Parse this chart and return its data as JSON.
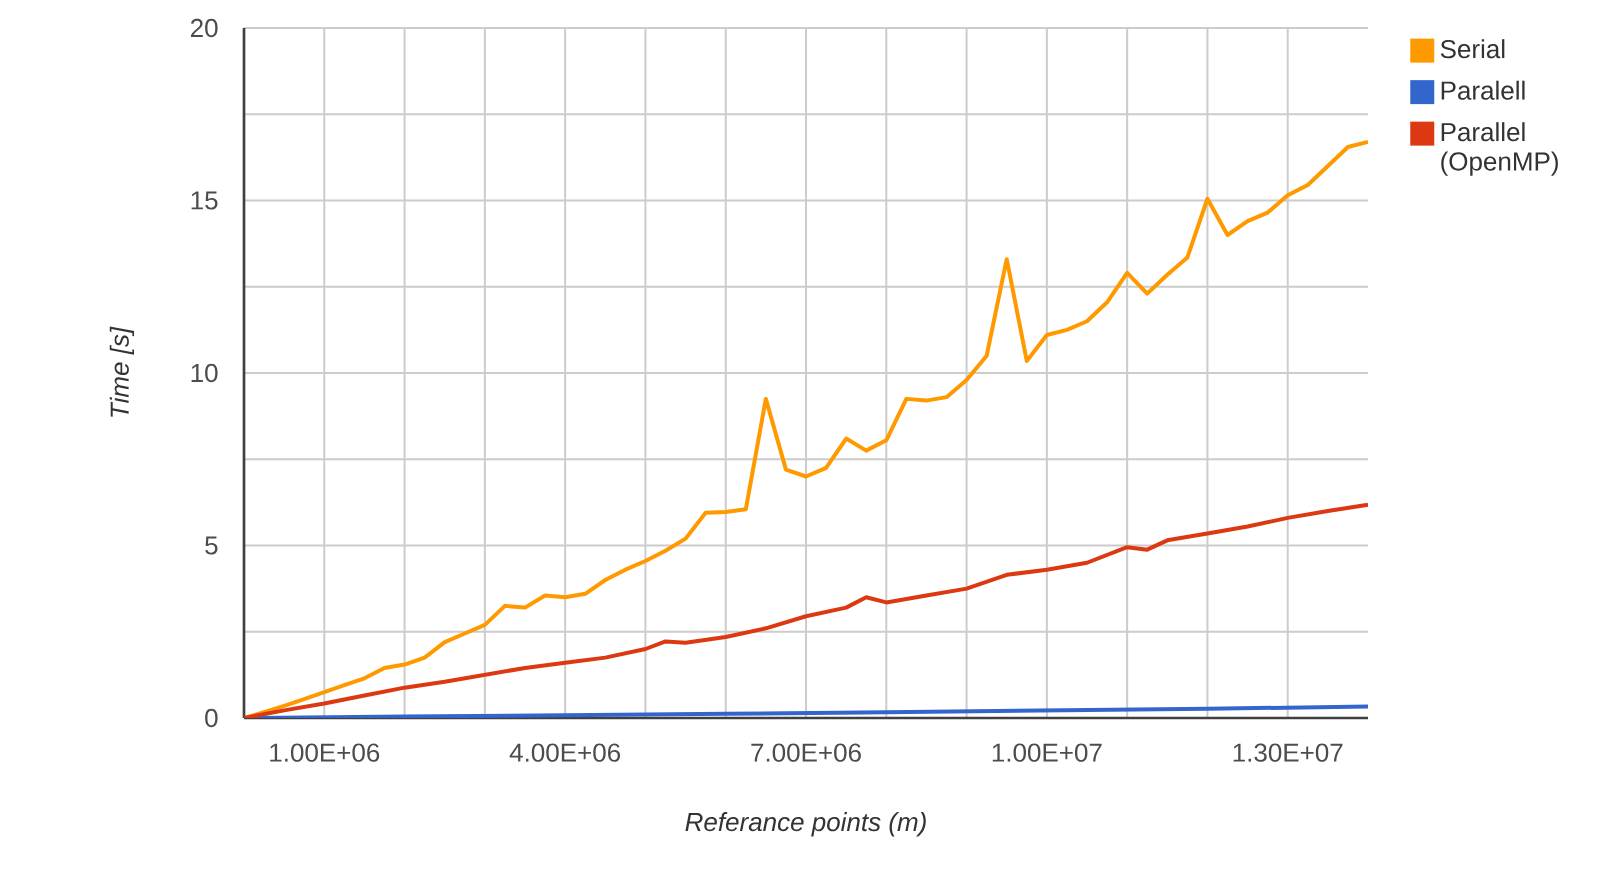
{
  "chart_data": {
    "type": "line",
    "xlabel": "Referance points (m)",
    "ylabel": "Time [s]",
    "xlim": [
      0,
      14000000
    ],
    "xticks": [
      {
        "value": 1000000,
        "label": "1.00E+06"
      },
      {
        "value": 2000000,
        "label": null
      },
      {
        "value": 3000000,
        "label": null
      },
      {
        "value": 4000000,
        "label": "4.00E+06"
      },
      {
        "value": 5000000,
        "label": null
      },
      {
        "value": 6000000,
        "label": null
      },
      {
        "value": 7000000,
        "label": "7.00E+06"
      },
      {
        "value": 8000000,
        "label": null
      },
      {
        "value": 9000000,
        "label": null
      },
      {
        "value": 10000000,
        "label": "1.00E+07"
      },
      {
        "value": 11000000,
        "label": null
      },
      {
        "value": 12000000,
        "label": null
      },
      {
        "value": 13000000,
        "label": "1.30E+07"
      }
    ],
    "ylim": [
      0,
      20
    ],
    "yticks": [
      0,
      {
        "value": 2.5,
        "label": null
      },
      5,
      {
        "value": 7.5,
        "label": null
      },
      10,
      {
        "value": 12.5,
        "label": null
      },
      15,
      {
        "value": 17.5,
        "label": null
      },
      20
    ],
    "grid": true,
    "legend": "right",
    "series": [
      {
        "name": "Serial",
        "color": "#ff9900",
        "x": [
          0,
          250000,
          500000,
          750000,
          1000000,
          1250000,
          1500000,
          1750000,
          2000000,
          2250000,
          2500000,
          2750000,
          3000000,
          3250000,
          3500000,
          3750000,
          4000000,
          4250000,
          4500000,
          4750000,
          5000000,
          5250000,
          5500000,
          5750000,
          6000000,
          6250000,
          6500000,
          6750000,
          7000000,
          7250000,
          7500000,
          7750000,
          8000000,
          8250000,
          8500000,
          8750000,
          9000000,
          9250000,
          9500000,
          9750000,
          10000000,
          10250000,
          10500000,
          10750000,
          11000000,
          11250000,
          11500000,
          11750000,
          12000000,
          12250000,
          12500000,
          12750000,
          13000000,
          13250000,
          13500000,
          13750000,
          14000000
        ],
        "values": [
          0,
          0.17,
          0.35,
          0.55,
          0.75,
          0.95,
          1.15,
          1.45,
          1.55,
          1.75,
          2.2,
          2.45,
          2.7,
          3.25,
          3.2,
          3.55,
          3.5,
          3.6,
          4.0,
          4.3,
          4.55,
          4.85,
          5.2,
          5.95,
          5.97,
          6.05,
          9.25,
          7.2,
          7.0,
          7.25,
          8.1,
          7.75,
          8.05,
          9.25,
          9.2,
          9.3,
          9.8,
          10.5,
          13.3,
          10.35,
          11.1,
          11.25,
          11.5,
          12.05,
          12.9,
          12.3,
          12.85,
          13.35,
          15.05,
          14.0,
          14.4,
          14.65,
          15.15,
          15.45,
          16.0,
          16.55,
          16.7
        ]
      },
      {
        "name": "Paralell",
        "color": "#3366cc",
        "x": [
          0,
          2000000,
          4000000,
          6000000,
          8000000,
          10000000,
          12000000,
          14000000
        ],
        "values": [
          0,
          0.04,
          0.08,
          0.12,
          0.17,
          0.22,
          0.27,
          0.33
        ]
      },
      {
        "name": "Parallel (OpenMP)",
        "color": "#dc3912",
        "x": [
          0,
          500000,
          1000000,
          1500000,
          2000000,
          2500000,
          3000000,
          3500000,
          4000000,
          4500000,
          5000000,
          5250000,
          5500000,
          6000000,
          6500000,
          7000000,
          7500000,
          7750000,
          8000000,
          8500000,
          9000000,
          9500000,
          10000000,
          10500000,
          11000000,
          11250000,
          11500000,
          12000000,
          12500000,
          13000000,
          13500000,
          14000000
        ],
        "values": [
          0,
          0.22,
          0.42,
          0.65,
          0.88,
          1.05,
          1.25,
          1.45,
          1.6,
          1.75,
          2.0,
          2.22,
          2.18,
          2.35,
          2.6,
          2.95,
          3.2,
          3.5,
          3.35,
          3.55,
          3.75,
          4.15,
          4.3,
          4.5,
          4.95,
          4.88,
          5.15,
          5.35,
          5.55,
          5.8,
          6.0,
          6.18
        ]
      }
    ]
  }
}
